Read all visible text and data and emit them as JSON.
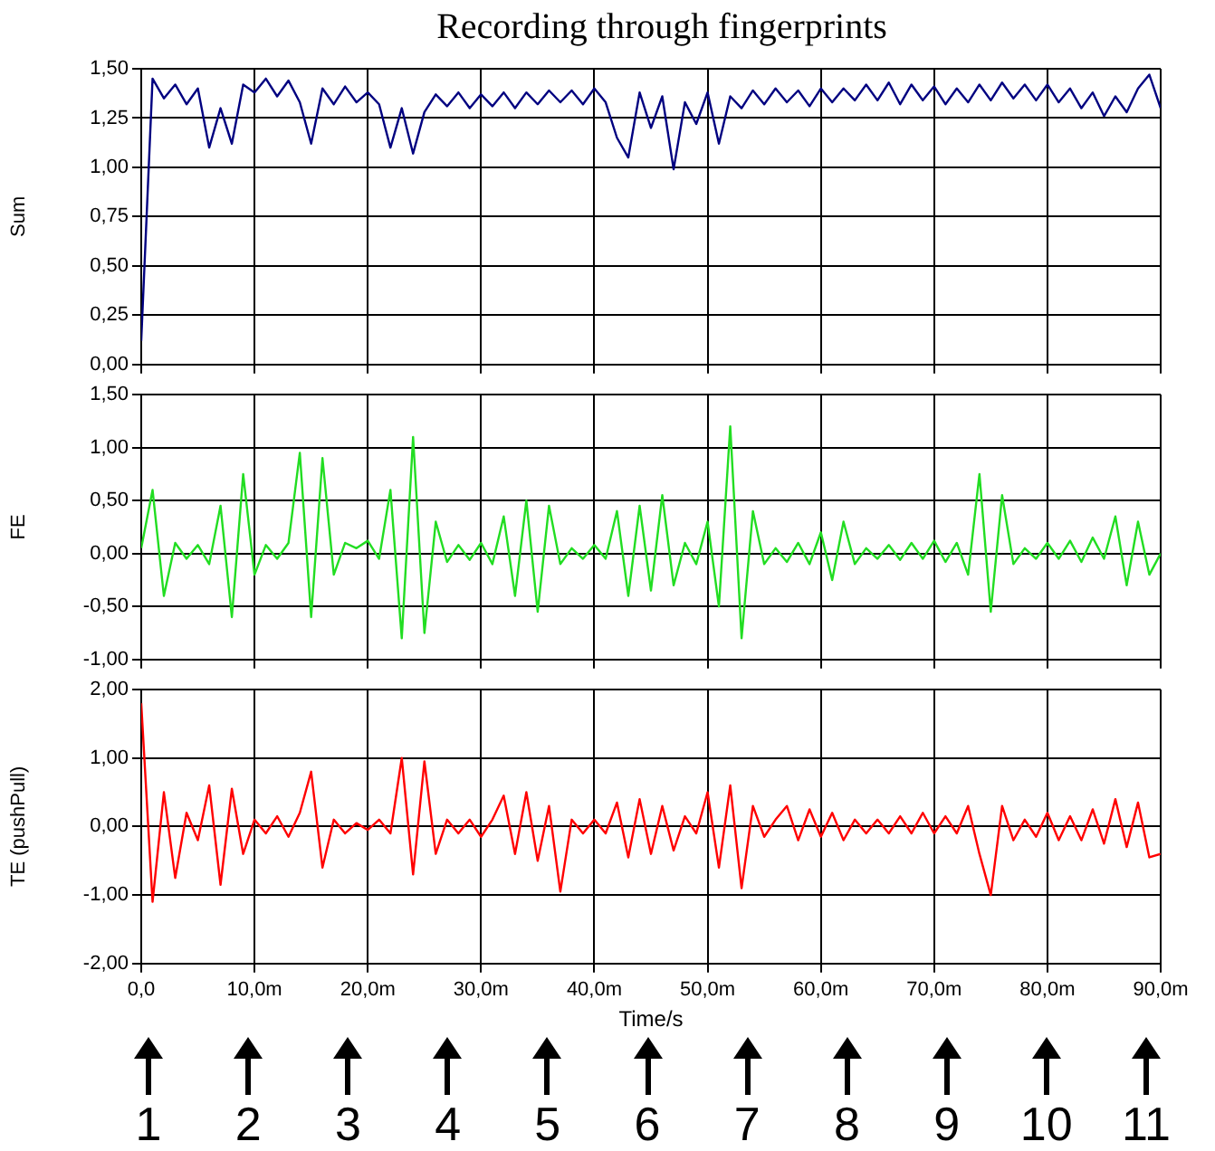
{
  "chart_data": [
    {
      "type": "line",
      "title": "Recording through fingerprints",
      "ylabel": "Sum",
      "color": "#000080",
      "marker": "none",
      "line_style": "solid",
      "grid": true,
      "tick_labels": "y",
      "x": [
        0,
        1,
        2,
        3,
        4,
        5,
        6,
        7,
        8,
        9,
        10,
        11,
        12,
        13,
        14,
        15,
        16,
        17,
        18,
        19,
        20,
        21,
        22,
        23,
        24,
        25,
        26,
        27,
        28,
        29,
        30,
        31,
        32,
        33,
        34,
        35,
        36,
        37,
        38,
        39,
        40,
        41,
        42,
        43,
        44,
        45,
        46,
        47,
        48,
        49,
        50,
        51,
        52,
        53,
        54,
        55,
        56,
        57,
        58,
        59,
        60,
        61,
        62,
        63,
        64,
        65,
        66,
        67,
        68,
        69,
        70,
        71,
        72,
        73,
        74,
        75,
        76,
        77,
        78,
        79,
        80,
        81,
        82,
        83,
        84,
        85,
        86,
        87,
        88,
        89,
        90
      ],
      "values": [
        0.12,
        1.45,
        1.35,
        1.42,
        1.32,
        1.4,
        1.1,
        1.3,
        1.12,
        1.42,
        1.38,
        1.45,
        1.36,
        1.44,
        1.33,
        1.12,
        1.4,
        1.32,
        1.41,
        1.33,
        1.38,
        1.32,
        1.1,
        1.3,
        1.07,
        1.28,
        1.37,
        1.31,
        1.38,
        1.3,
        1.37,
        1.31,
        1.38,
        1.3,
        1.38,
        1.32,
        1.39,
        1.33,
        1.39,
        1.32,
        1.4,
        1.33,
        1.15,
        1.05,
        1.38,
        1.2,
        1.36,
        0.99,
        1.33,
        1.22,
        1.38,
        1.12,
        1.36,
        1.3,
        1.39,
        1.32,
        1.4,
        1.33,
        1.39,
        1.31,
        1.4,
        1.33,
        1.4,
        1.34,
        1.42,
        1.34,
        1.43,
        1.32,
        1.42,
        1.34,
        1.41,
        1.32,
        1.4,
        1.33,
        1.42,
        1.34,
        1.43,
        1.35,
        1.42,
        1.34,
        1.42,
        1.33,
        1.4,
        1.3,
        1.38,
        1.26,
        1.36,
        1.28,
        1.4,
        1.47,
        1.3
      ],
      "xlim": [
        0,
        90
      ],
      "xticks": [
        0,
        10,
        20,
        30,
        40,
        50,
        60,
        70,
        80,
        90
      ],
      "ylim": [
        0,
        1.5
      ],
      "yticks": [
        {
          "value": 0,
          "label": "0,00"
        },
        {
          "value": 0.25,
          "label": "0,25"
        },
        {
          "value": 0.5,
          "label": "0,50"
        },
        {
          "value": 0.75,
          "label": "0,75"
        },
        {
          "value": 1,
          "label": "1,00"
        },
        {
          "value": 1.25,
          "label": "1,25"
        },
        {
          "value": 1.5,
          "label": "1,50"
        }
      ]
    },
    {
      "type": "line",
      "ylabel": "FE",
      "color": "#22dd22",
      "marker": "none",
      "line_style": "solid",
      "grid": true,
      "tick_labels": "y",
      "x": [
        0,
        1,
        2,
        3,
        4,
        5,
        6,
        7,
        8,
        9,
        10,
        11,
        12,
        13,
        14,
        15,
        16,
        17,
        18,
        19,
        20,
        21,
        22,
        23,
        24,
        25,
        26,
        27,
        28,
        29,
        30,
        31,
        32,
        33,
        34,
        35,
        36,
        37,
        38,
        39,
        40,
        41,
        42,
        43,
        44,
        45,
        46,
        47,
        48,
        49,
        50,
        51,
        52,
        53,
        54,
        55,
        56,
        57,
        58,
        59,
        60,
        61,
        62,
        63,
        64,
        65,
        66,
        67,
        68,
        69,
        70,
        71,
        72,
        73,
        74,
        75,
        76,
        77,
        78,
        79,
        80,
        81,
        82,
        83,
        84,
        85,
        86,
        87,
        88,
        89,
        90
      ],
      "values": [
        0.05,
        0.6,
        -0.4,
        0.1,
        -0.05,
        0.08,
        -0.1,
        0.45,
        -0.6,
        0.75,
        -0.2,
        0.08,
        -0.05,
        0.1,
        0.95,
        -0.6,
        0.9,
        -0.2,
        0.1,
        0.05,
        0.12,
        -0.05,
        0.6,
        -0.8,
        1.1,
        -0.75,
        0.3,
        -0.08,
        0.08,
        -0.06,
        0.1,
        -0.1,
        0.35,
        -0.4,
        0.5,
        -0.55,
        0.45,
        -0.1,
        0.05,
        -0.05,
        0.08,
        -0.05,
        0.4,
        -0.4,
        0.45,
        -0.35,
        0.55,
        -0.3,
        0.1,
        -0.1,
        0.3,
        -0.5,
        1.2,
        -0.8,
        0.4,
        -0.1,
        0.05,
        -0.08,
        0.1,
        -0.1,
        0.2,
        -0.25,
        0.3,
        -0.1,
        0.05,
        -0.05,
        0.08,
        -0.06,
        0.1,
        -0.05,
        0.12,
        -0.08,
        0.1,
        -0.2,
        0.75,
        -0.55,
        0.55,
        -0.1,
        0.05,
        -0.05,
        0.1,
        -0.05,
        0.12,
        -0.08,
        0.15,
        -0.05,
        0.35,
        -0.3,
        0.3,
        -0.2,
        0.0
      ],
      "xlim": [
        0,
        90
      ],
      "xticks": [
        0,
        10,
        20,
        30,
        40,
        50,
        60,
        70,
        80,
        90
      ],
      "ylim": [
        -1,
        1.5
      ],
      "yticks": [
        {
          "value": -1,
          "label": "-1,00"
        },
        {
          "value": -0.5,
          "label": "-0,50"
        },
        {
          "value": 0,
          "label": "0,00"
        },
        {
          "value": 0.5,
          "label": "0,50"
        },
        {
          "value": 1,
          "label": "1,00"
        },
        {
          "value": 1.5,
          "label": "1,50"
        }
      ]
    },
    {
      "type": "line",
      "ylabel": "TE (pushPull)",
      "xlabel": "Time/s",
      "color": "#ff0000",
      "marker": "none",
      "line_style": "solid",
      "grid": true,
      "x": [
        0,
        1,
        2,
        3,
        4,
        5,
        6,
        7,
        8,
        9,
        10,
        11,
        12,
        13,
        14,
        15,
        16,
        17,
        18,
        19,
        20,
        21,
        22,
        23,
        24,
        25,
        26,
        27,
        28,
        29,
        30,
        31,
        32,
        33,
        34,
        35,
        36,
        37,
        38,
        39,
        40,
        41,
        42,
        43,
        44,
        45,
        46,
        47,
        48,
        49,
        50,
        51,
        52,
        53,
        54,
        55,
        56,
        57,
        58,
        59,
        60,
        61,
        62,
        63,
        64,
        65,
        66,
        67,
        68,
        69,
        70,
        71,
        72,
        73,
        74,
        75,
        76,
        77,
        78,
        79,
        80,
        81,
        82,
        83,
        84,
        85,
        86,
        87,
        88,
        89,
        90
      ],
      "values": [
        1.8,
        -1.1,
        0.5,
        -0.75,
        0.2,
        -0.2,
        0.6,
        -0.85,
        0.55,
        -0.4,
        0.1,
        -0.1,
        0.15,
        -0.15,
        0.2,
        0.8,
        -0.6,
        0.1,
        -0.1,
        0.05,
        -0.05,
        0.1,
        -0.1,
        1.0,
        -0.7,
        0.95,
        -0.4,
        0.1,
        -0.1,
        0.1,
        -0.15,
        0.1,
        0.45,
        -0.4,
        0.5,
        -0.5,
        0.3,
        -0.95,
        0.1,
        -0.1,
        0.1,
        -0.1,
        0.35,
        -0.45,
        0.4,
        -0.4,
        0.3,
        -0.35,
        0.15,
        -0.1,
        0.5,
        -0.6,
        0.6,
        -0.9,
        0.3,
        -0.15,
        0.1,
        0.3,
        -0.2,
        0.25,
        -0.15,
        0.2,
        -0.2,
        0.1,
        -0.1,
        0.1,
        -0.1,
        0.15,
        -0.1,
        0.2,
        -0.1,
        0.15,
        -0.1,
        0.3,
        -0.4,
        -1.0,
        0.3,
        -0.2,
        0.1,
        -0.15,
        0.2,
        -0.2,
        0.15,
        -0.2,
        0.25,
        -0.25,
        0.4,
        -0.3,
        0.35,
        -0.45,
        -0.4
      ],
      "xlim": [
        0,
        90
      ],
      "xticks": [
        {
          "value": 0,
          "label": "0,0"
        },
        {
          "value": 10,
          "label": "10,0m"
        },
        {
          "value": 20,
          "label": "20,0m"
        },
        {
          "value": 30,
          "label": "30,0m"
        },
        {
          "value": 40,
          "label": "40,0m"
        },
        {
          "value": 50,
          "label": "50,0m"
        },
        {
          "value": 60,
          "label": "60,0m"
        },
        {
          "value": 70,
          "label": "70,0m"
        },
        {
          "value": 80,
          "label": "80,0m"
        },
        {
          "value": 90,
          "label": "90,0m"
        }
      ],
      "ylim": [
        -2,
        2
      ],
      "yticks": [
        {
          "value": -2,
          "label": "-2,00"
        },
        {
          "value": -1,
          "label": "-1,00"
        },
        {
          "value": 0,
          "label": "0,00"
        },
        {
          "value": 1,
          "label": "1,00"
        },
        {
          "value": 2,
          "label": "2,00"
        }
      ],
      "annotations": [
        "1",
        "2",
        "3",
        "4",
        "5",
        "6",
        "7",
        "8",
        "9",
        "10",
        "11"
      ]
    }
  ]
}
